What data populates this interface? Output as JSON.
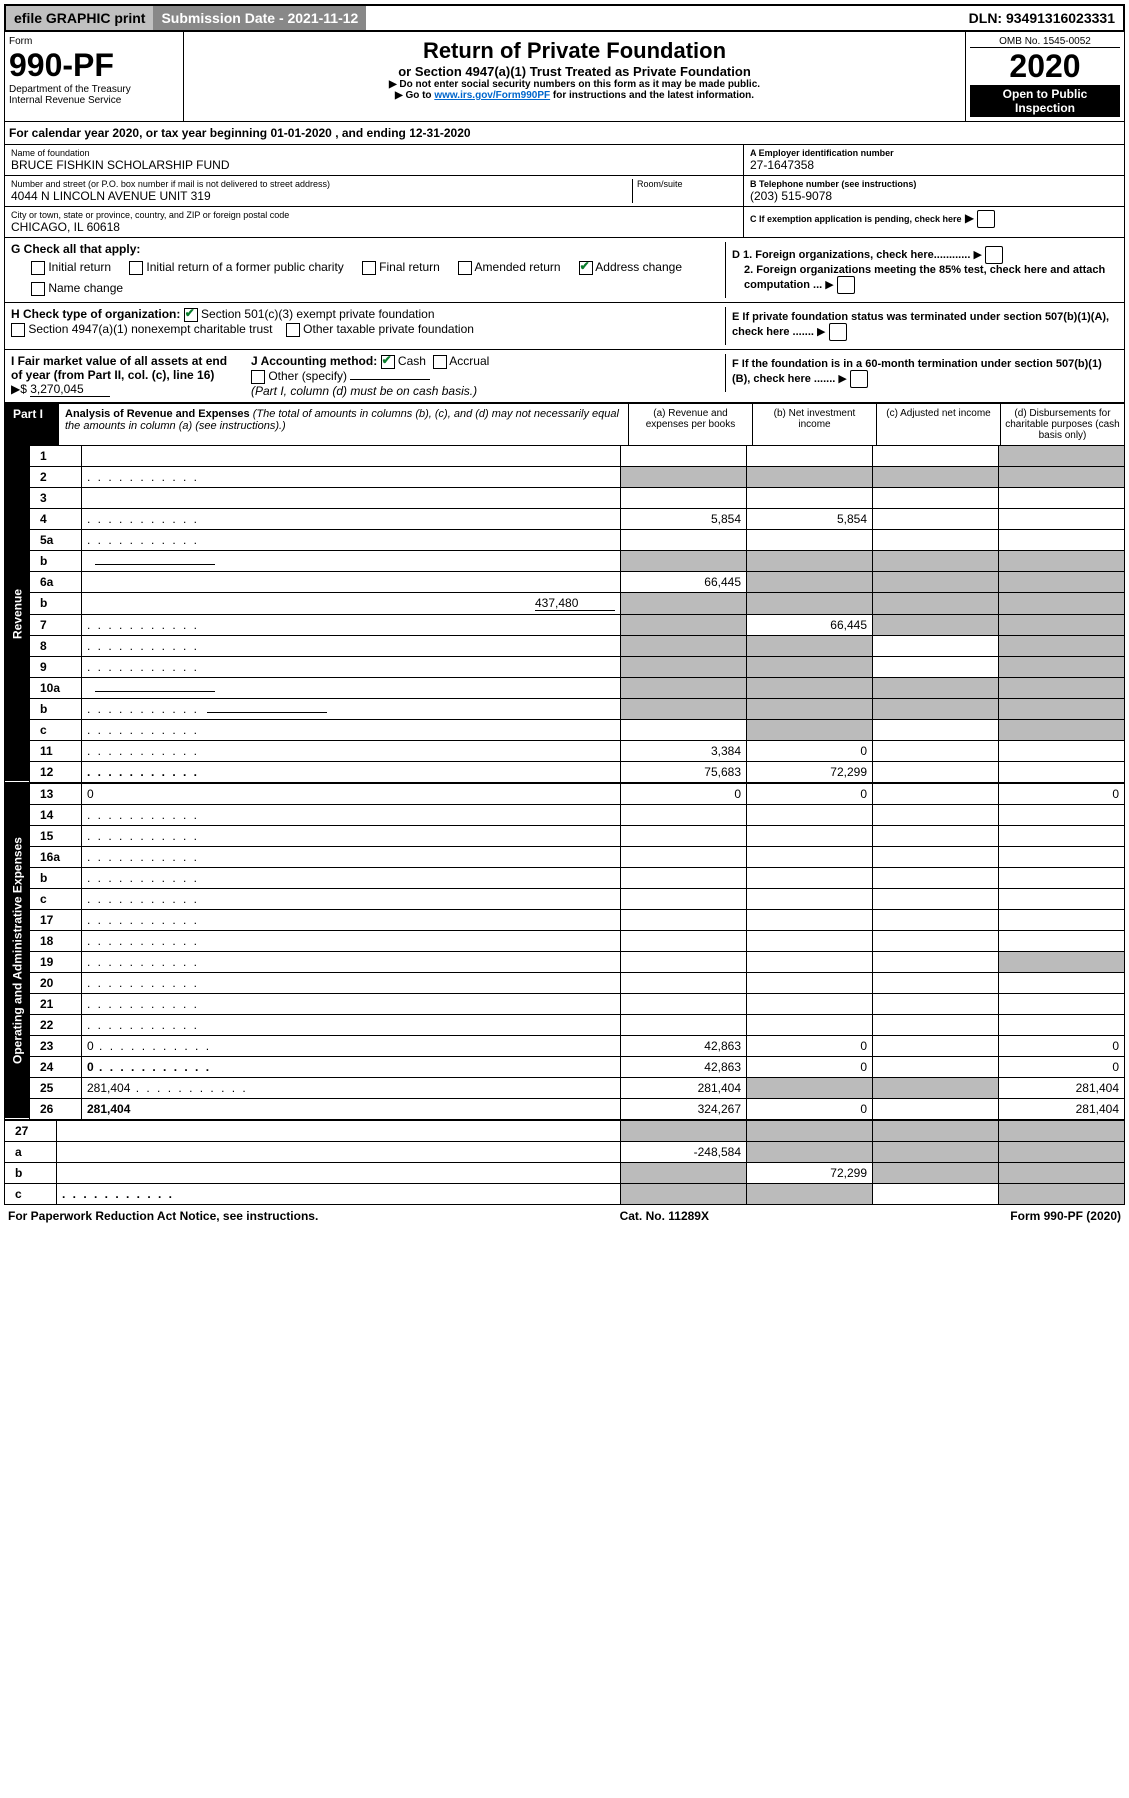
{
  "topbar": {
    "efile": "efile GRAPHIC print",
    "submission": "Submission Date - 2021-11-12",
    "dln": "DLN: 93491316023331"
  },
  "header": {
    "form_label": "Form",
    "form_num": "990-PF",
    "dept": "Department of the Treasury",
    "irs": "Internal Revenue Service",
    "title": "Return of Private Foundation",
    "subtitle": "or Section 4947(a)(1) Trust Treated as Private Foundation",
    "note1": "▶ Do not enter social security numbers on this form as it may be made public.",
    "note2_pre": "▶ Go to ",
    "note2_link": "www.irs.gov/Form990PF",
    "note2_post": " for instructions and the latest information.",
    "omb": "OMB No. 1545-0052",
    "year": "2020",
    "open": "Open to Public Inspection"
  },
  "cal_year": {
    "text_pre": "For calendar year 2020, or tax year beginning ",
    "begin": "01-01-2020",
    "mid": " , and ending ",
    "end": "12-31-2020"
  },
  "info": {
    "name_lbl": "Name of foundation",
    "name": "BRUCE FISHKIN SCHOLARSHIP FUND",
    "addr_lbl": "Number and street (or P.O. box number if mail is not delivered to street address)",
    "addr": "4044 N LINCOLN AVENUE UNIT 319",
    "room_lbl": "Room/suite",
    "city_lbl": "City or town, state or province, country, and ZIP or foreign postal code",
    "city": "CHICAGO, IL  60618",
    "a_lbl": "A Employer identification number",
    "a_val": "27-1647358",
    "b_lbl": "B Telephone number (see instructions)",
    "b_val": "(203) 515-9078",
    "c_lbl": "C If exemption application is pending, check here",
    "d1_lbl": "D 1. Foreign organizations, check here............",
    "d2_lbl": "2. Foreign organizations meeting the 85% test, check here and attach computation ...",
    "e_lbl": "E  If private foundation status was terminated under section 507(b)(1)(A), check here .......",
    "f_lbl": "F  If the foundation is in a 60-month termination under section 507(b)(1)(B), check here .......",
    "g_lbl": "G Check all that apply:",
    "g_opts": {
      "initial": "Initial return",
      "initial_former": "Initial return of a former public charity",
      "final": "Final return",
      "amended": "Amended return",
      "addr_change": "Address change",
      "name_change": "Name change"
    },
    "h_lbl": "H Check type of organization:",
    "h_opt1": "Section 501(c)(3) exempt private foundation",
    "h_opt2": "Section 4947(a)(1) nonexempt charitable trust",
    "h_opt3": "Other taxable private foundation",
    "i_lbl": "I Fair market value of all assets at end of year (from Part II, col. (c), line 16)",
    "i_val": "3,270,045",
    "j_lbl": "J Accounting method:",
    "j_cash": "Cash",
    "j_accrual": "Accrual",
    "j_other": "Other (specify)",
    "j_note": "(Part I, column (d) must be on cash basis.)"
  },
  "part": {
    "label": "Part I",
    "title": "Analysis of Revenue and Expenses",
    "note": " (The total of amounts in columns (b), (c), and (d) may not necessarily equal the amounts in column (a) (see instructions).)",
    "cols": {
      "a": "(a)  Revenue and expenses per books",
      "b": "(b)  Net investment income",
      "c": "(c)  Adjusted net income",
      "d": "(d)  Disbursements for charitable purposes (cash basis only)"
    }
  },
  "side": {
    "revenue": "Revenue",
    "expenses": "Operating and Administrative Expenses"
  },
  "rows": [
    {
      "n": "1",
      "d": "",
      "a": "",
      "b": "",
      "c": "",
      "sd": true
    },
    {
      "n": "2",
      "d": "",
      "a": "",
      "b": "",
      "c": "",
      "shade_all": true,
      "dots": true
    },
    {
      "n": "3",
      "d": "",
      "a": "",
      "b": "",
      "c": ""
    },
    {
      "n": "4",
      "d": "",
      "a": "5,854",
      "b": "5,854",
      "c": "",
      "dots": true
    },
    {
      "n": "5a",
      "d": "",
      "a": "",
      "b": "",
      "c": "",
      "dots": true
    },
    {
      "n": "b",
      "d": "",
      "a": "",
      "b": "",
      "c": "",
      "shade_all": true,
      "inline": true
    },
    {
      "n": "6a",
      "d": "",
      "a": "66,445",
      "b": "",
      "c": "",
      "sb": true,
      "sc": true,
      "sd": true
    },
    {
      "n": "b",
      "d": "",
      "inline_val": "437,480",
      "a": "",
      "b": "",
      "c": "",
      "shade_all": true
    },
    {
      "n": "7",
      "d": "",
      "a": "",
      "b": "66,445",
      "c": "",
      "sa": true,
      "sc": true,
      "sd": true,
      "dots": true
    },
    {
      "n": "8",
      "d": "",
      "a": "",
      "b": "",
      "c": "",
      "sa": true,
      "sb": true,
      "sd": true,
      "dots": true
    },
    {
      "n": "9",
      "d": "",
      "a": "",
      "b": "",
      "c": "",
      "sa": true,
      "sb": true,
      "sd": true,
      "dots": true
    },
    {
      "n": "10a",
      "d": "",
      "a": "",
      "b": "",
      "c": "",
      "shade_all": true,
      "inline": true
    },
    {
      "n": "b",
      "d": "",
      "a": "",
      "b": "",
      "c": "",
      "shade_all": true,
      "inline": true,
      "dots": true
    },
    {
      "n": "c",
      "d": "",
      "a": "",
      "b": "",
      "c": "",
      "sb": true,
      "sd": true,
      "dots": true
    },
    {
      "n": "11",
      "d": "",
      "a": "3,384",
      "b": "0",
      "c": "",
      "dots": true
    },
    {
      "n": "12",
      "d": "",
      "a": "75,683",
      "b": "72,299",
      "c": "",
      "bold": true,
      "dots": true
    }
  ],
  "exp_rows": [
    {
      "n": "13",
      "d": "0",
      "a": "0",
      "b": "0",
      "c": ""
    },
    {
      "n": "14",
      "d": "",
      "a": "",
      "b": "",
      "c": "",
      "dots": true
    },
    {
      "n": "15",
      "d": "",
      "a": "",
      "b": "",
      "c": "",
      "dots": true
    },
    {
      "n": "16a",
      "d": "",
      "a": "",
      "b": "",
      "c": "",
      "dots": true
    },
    {
      "n": "b",
      "d": "",
      "a": "",
      "b": "",
      "c": "",
      "dots": true
    },
    {
      "n": "c",
      "d": "",
      "a": "",
      "b": "",
      "c": "",
      "dots": true
    },
    {
      "n": "17",
      "d": "",
      "a": "",
      "b": "",
      "c": "",
      "dots": true
    },
    {
      "n": "18",
      "d": "",
      "a": "",
      "b": "",
      "c": "",
      "dots": true
    },
    {
      "n": "19",
      "d": "",
      "a": "",
      "b": "",
      "c": "",
      "sd": true,
      "dots": true
    },
    {
      "n": "20",
      "d": "",
      "a": "",
      "b": "",
      "c": "",
      "dots": true
    },
    {
      "n": "21",
      "d": "",
      "a": "",
      "b": "",
      "c": "",
      "dots": true
    },
    {
      "n": "22",
      "d": "",
      "a": "",
      "b": "",
      "c": "",
      "dots": true
    },
    {
      "n": "23",
      "d": "0",
      "a": "42,863",
      "b": "0",
      "c": "",
      "dots": true
    },
    {
      "n": "24",
      "d": "0",
      "a": "42,863",
      "b": "0",
      "c": "",
      "bold": true,
      "dots": true
    },
    {
      "n": "25",
      "d": "281,404",
      "a": "281,404",
      "b": "",
      "c": "",
      "sb": true,
      "sc": true,
      "dots": true
    },
    {
      "n": "26",
      "d": "281,404",
      "a": "324,267",
      "b": "0",
      "c": "",
      "bold": true
    }
  ],
  "bottom_rows": [
    {
      "n": "27",
      "d": "",
      "a": "",
      "b": "",
      "c": "",
      "shade_all": true
    },
    {
      "n": "a",
      "d": "",
      "a": "-248,584",
      "b": "",
      "c": "",
      "sb": true,
      "sc": true,
      "sd": true,
      "bold": true
    },
    {
      "n": "b",
      "d": "",
      "a": "",
      "b": "72,299",
      "c": "",
      "sa": true,
      "sc": true,
      "sd": true,
      "bold": true
    },
    {
      "n": "c",
      "d": "",
      "a": "",
      "b": "",
      "c": "",
      "sa": true,
      "sb": true,
      "sd": true,
      "bold": true,
      "dots": true
    }
  ],
  "footer": {
    "left": "For Paperwork Reduction Act Notice, see instructions.",
    "mid": "Cat. No. 11289X",
    "right": "Form 990-PF (2020)"
  }
}
